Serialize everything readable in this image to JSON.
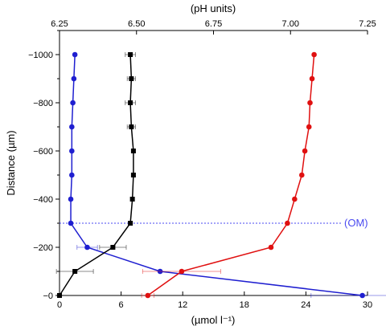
{
  "chart_data": {
    "type": "line",
    "xlabel_bottom": "(µmol l⁻¹)",
    "xlabel_top": "(pH units)",
    "ylabel": "Distance (µm)",
    "bottom_axis": {
      "range": [
        0,
        30
      ],
      "ticks": [
        0,
        6,
        12,
        18,
        24,
        30
      ],
      "tick_labels": [
        "0",
        "6",
        "12",
        "18",
        "24",
        "30"
      ]
    },
    "top_axis": {
      "range": [
        6.25,
        7.25
      ],
      "ticks": [
        6.25,
        6.5,
        6.75,
        7.0,
        7.25
      ],
      "tick_labels": [
        "6.25",
        "6.50",
        "6.75",
        "7.00",
        "7.25"
      ]
    },
    "y_axis": {
      "range": [
        0,
        -1100
      ],
      "ticks": [
        0,
        -200,
        -400,
        -600,
        -800,
        -1000
      ],
      "tick_labels": [
        "−0",
        "−200",
        "−400",
        "−600",
        "−800",
        "−1000"
      ]
    },
    "reference_line": {
      "y": -300,
      "label": "(OM)",
      "color": "#4a4af0"
    },
    "series": [
      {
        "color": "#1f1fd0",
        "axis": "bottom",
        "points": [
          {
            "x": 1.5,
            "y": -1000
          },
          {
            "x": 1.4,
            "y": -900
          },
          {
            "x": 1.3,
            "y": -800
          },
          {
            "x": 1.2,
            "y": -700
          },
          {
            "x": 1.2,
            "y": -600
          },
          {
            "x": 1.2,
            "y": -500
          },
          {
            "x": 1.1,
            "y": -400
          },
          {
            "x": 1.1,
            "y": -300
          },
          {
            "x": 2.7,
            "y": -200,
            "err": 1.0
          },
          {
            "x": 9.8,
            "y": -100
          },
          {
            "x": 29.5,
            "y": 0,
            "err": 5.0
          }
        ]
      },
      {
        "color": "#000000",
        "axis": "bottom",
        "points": [
          {
            "x": 6.9,
            "y": -1000,
            "err": 0.5
          },
          {
            "x": 7.0,
            "y": -900,
            "err": 0.4
          },
          {
            "x": 6.9,
            "y": -800,
            "err": 0.5
          },
          {
            "x": 7.0,
            "y": -700,
            "err": 0.4
          },
          {
            "x": 7.2,
            "y": -600
          },
          {
            "x": 7.2,
            "y": -500
          },
          {
            "x": 7.1,
            "y": -400
          },
          {
            "x": 6.9,
            "y": -300
          },
          {
            "x": 5.2,
            "y": -200,
            "err": 1.3
          },
          {
            "x": 1.5,
            "y": -100,
            "err": 1.8
          },
          {
            "x": 0.0,
            "y": 0
          }
        ]
      },
      {
        "color": "#e01010",
        "axis": "bottom",
        "points": [
          {
            "x": 24.8,
            "y": -1000
          },
          {
            "x": 24.6,
            "y": -900
          },
          {
            "x": 24.4,
            "y": -800
          },
          {
            "x": 24.3,
            "y": -700
          },
          {
            "x": 23.9,
            "y": -600
          },
          {
            "x": 23.6,
            "y": -500
          },
          {
            "x": 22.9,
            "y": -400
          },
          {
            "x": 22.2,
            "y": -300
          },
          {
            "x": 20.6,
            "y": -200
          },
          {
            "x": 11.9,
            "y": -100,
            "err": 3.8
          },
          {
            "x": 8.6,
            "y": 0,
            "err": 0.6
          }
        ]
      }
    ]
  }
}
